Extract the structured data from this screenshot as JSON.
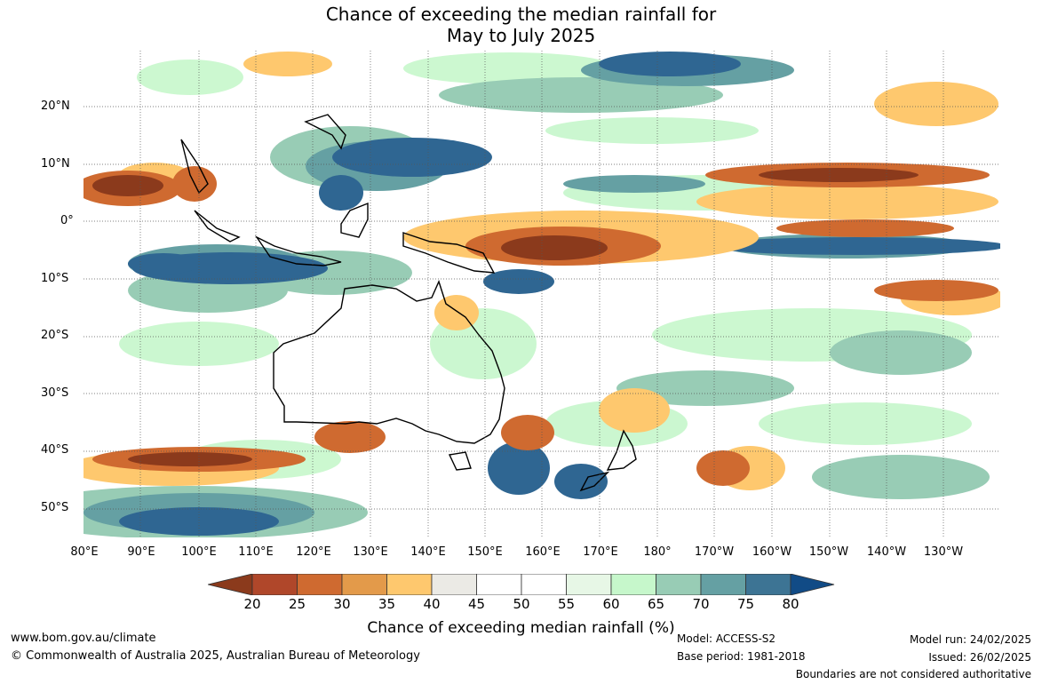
{
  "title": {
    "line1": "Chance of exceeding the median rainfall for",
    "line2": "May to July 2025"
  },
  "map": {
    "lat_labels": [
      "20°N",
      "10°N",
      "0°",
      "10°S",
      "20°S",
      "30°S",
      "40°S",
      "50°S"
    ],
    "lon_labels": [
      "80°E",
      "90°E",
      "100°E",
      "110°E",
      "120°E",
      "130°E",
      "140°E",
      "150°E",
      "160°E",
      "170°E",
      "180°",
      "170°W",
      "160°W",
      "150°W",
      "140°W",
      "130°W"
    ]
  },
  "legend": {
    "ticks": [
      "20",
      "25",
      "30",
      "35",
      "40",
      "45",
      "50",
      "55",
      "60",
      "65",
      "70",
      "75",
      "80"
    ],
    "colors": [
      "#8b3a1c",
      "#b0472a",
      "#cf6a30",
      "#e39a4a",
      "#fec86e",
      "#ebeae5",
      "#ffffff",
      "#ffffff",
      "#e7f7e6",
      "#c6f7cb",
      "#98ccb5",
      "#65a0a3",
      "#3d7494",
      "#114b86"
    ],
    "label": "Chance of exceeding median rainfall (%)"
  },
  "footer": {
    "website": "www.bom.gov.au/climate",
    "copyright": "© Commonwealth of Australia 2025, Australian Bureau of Meteorology",
    "model": "Model: ACCESS-S2",
    "base_period": "Base period: 1981-2018",
    "model_run": "Model run: 24/02/2025",
    "issued": "Issued: 26/02/2025",
    "disclaimer": "Boundaries are not considered authoritative"
  }
}
